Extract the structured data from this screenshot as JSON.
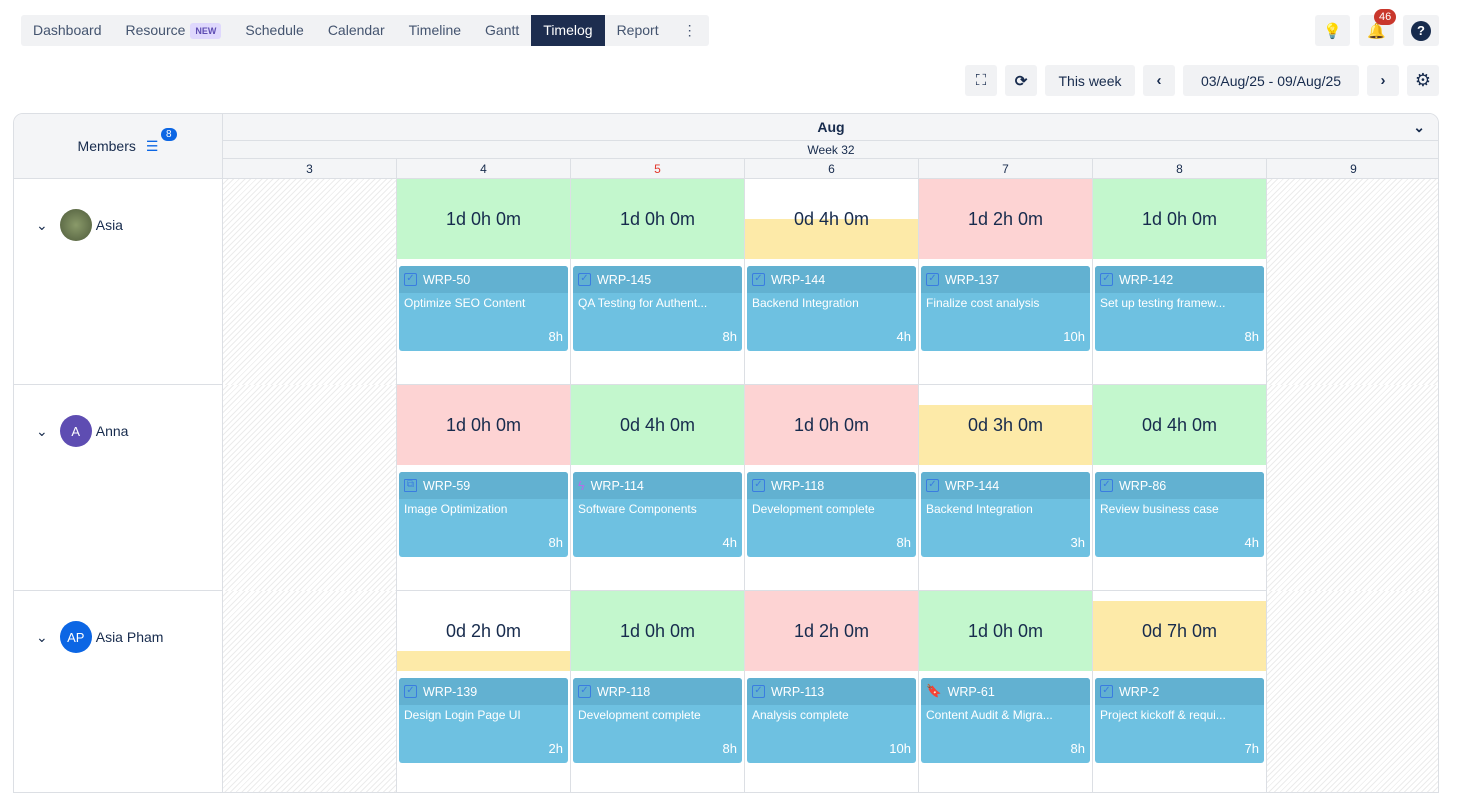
{
  "nav": {
    "tabs": [
      {
        "label": "Dashboard"
      },
      {
        "label": "Resource",
        "badge": "NEW"
      },
      {
        "label": "Schedule"
      },
      {
        "label": "Calendar"
      },
      {
        "label": "Timeline"
      },
      {
        "label": "Gantt"
      },
      {
        "label": "Timelog",
        "active": true
      },
      {
        "label": "Report"
      }
    ],
    "more": "⋮"
  },
  "top": {
    "notifications": "46"
  },
  "toolbar": {
    "this_week": "This week",
    "range": "03/Aug/25 - 09/Aug/25"
  },
  "grid": {
    "month": "Aug",
    "week": "Week 32",
    "members_label": "Members",
    "filter_count": "8",
    "days": [
      "3",
      "4",
      "5",
      "6",
      "7",
      "8",
      "9"
    ],
    "today": "5"
  },
  "colors": {
    "full": "#c3f7cd",
    "over": "#fdd3d3",
    "partial": "#fdeaa8",
    "card": "#6ec1e1",
    "today": "#e2362b"
  },
  "members": [
    {
      "name": "Asia",
      "avatar": "photo",
      "cells": [
        {
          "total": "1d 0h 0m",
          "status": "full",
          "fill": 1,
          "key": "WRP-50",
          "title": "Optimize SEO Content",
          "hours": "8h",
          "icon": "checkbox"
        },
        {
          "total": "1d 0h 0m",
          "status": "full",
          "fill": 1,
          "key": "WRP-145",
          "title": "QA Testing for Authent...",
          "hours": "8h",
          "icon": "checkbox"
        },
        {
          "total": "0d 4h 0m",
          "status": "partial",
          "fill": 0.5,
          "key": "WRP-144",
          "title": "Backend Integration",
          "hours": "4h",
          "icon": "checkbox"
        },
        {
          "total": "1d 2h 0m",
          "status": "over",
          "fill": 1,
          "key": "WRP-137",
          "title": "Finalize cost analysis",
          "hours": "10h",
          "icon": "checkbox"
        },
        {
          "total": "1d 0h 0m",
          "status": "full",
          "fill": 1,
          "key": "WRP-142",
          "title": "Set up testing framew...",
          "hours": "8h",
          "icon": "checkbox"
        }
      ]
    },
    {
      "name": "Anna",
      "avatar": "A",
      "avatar_color": "#5e4db2",
      "cells": [
        {
          "total": "1d 0h 0m",
          "status": "over",
          "fill": 1,
          "key": "WRP-59",
          "title": "Image Optimization",
          "hours": "8h",
          "icon": "subtask"
        },
        {
          "total": "0d 4h 0m",
          "status": "full",
          "fill": 1,
          "key": "WRP-114",
          "title": "Software Components",
          "hours": "4h",
          "icon": "epic"
        },
        {
          "total": "1d 0h 0m",
          "status": "over",
          "fill": 1,
          "key": "WRP-118",
          "title": "Development complete",
          "hours": "8h",
          "icon": "checkbox"
        },
        {
          "total": "0d 3h 0m",
          "status": "partial",
          "fill": 0.75,
          "key": "WRP-144",
          "title": "Backend Integration",
          "hours": "3h",
          "icon": "checkbox"
        },
        {
          "total": "0d 4h 0m",
          "status": "full",
          "fill": 1,
          "key": "WRP-86",
          "title": "Review business case",
          "hours": "4h",
          "icon": "checkbox"
        }
      ]
    },
    {
      "name": "Asia Pham",
      "avatar": "AP",
      "avatar_color": "#0c66e4",
      "cells": [
        {
          "total": "0d 2h 0m",
          "status": "partial",
          "fill": 0.25,
          "key": "WRP-139",
          "title": "Design Login Page UI",
          "hours": "2h",
          "icon": "checkbox"
        },
        {
          "total": "1d 0h 0m",
          "status": "full",
          "fill": 1,
          "key": "WRP-118",
          "title": "Development complete",
          "hours": "8h",
          "icon": "checkbox"
        },
        {
          "total": "1d 2h 0m",
          "status": "over",
          "fill": 1,
          "key": "WRP-113",
          "title": "Analysis complete",
          "hours": "10h",
          "icon": "checkbox"
        },
        {
          "total": "1d 0h 0m",
          "status": "full",
          "fill": 1,
          "key": "WRP-61",
          "title": "Content Audit & Migra...",
          "hours": "8h",
          "icon": "story"
        },
        {
          "total": "0d 7h 0m",
          "status": "partial",
          "fill": 0.875,
          "key": "WRP-2",
          "title": "Project kickoff & requi...",
          "hours": "7h",
          "icon": "checkbox"
        }
      ]
    }
  ]
}
